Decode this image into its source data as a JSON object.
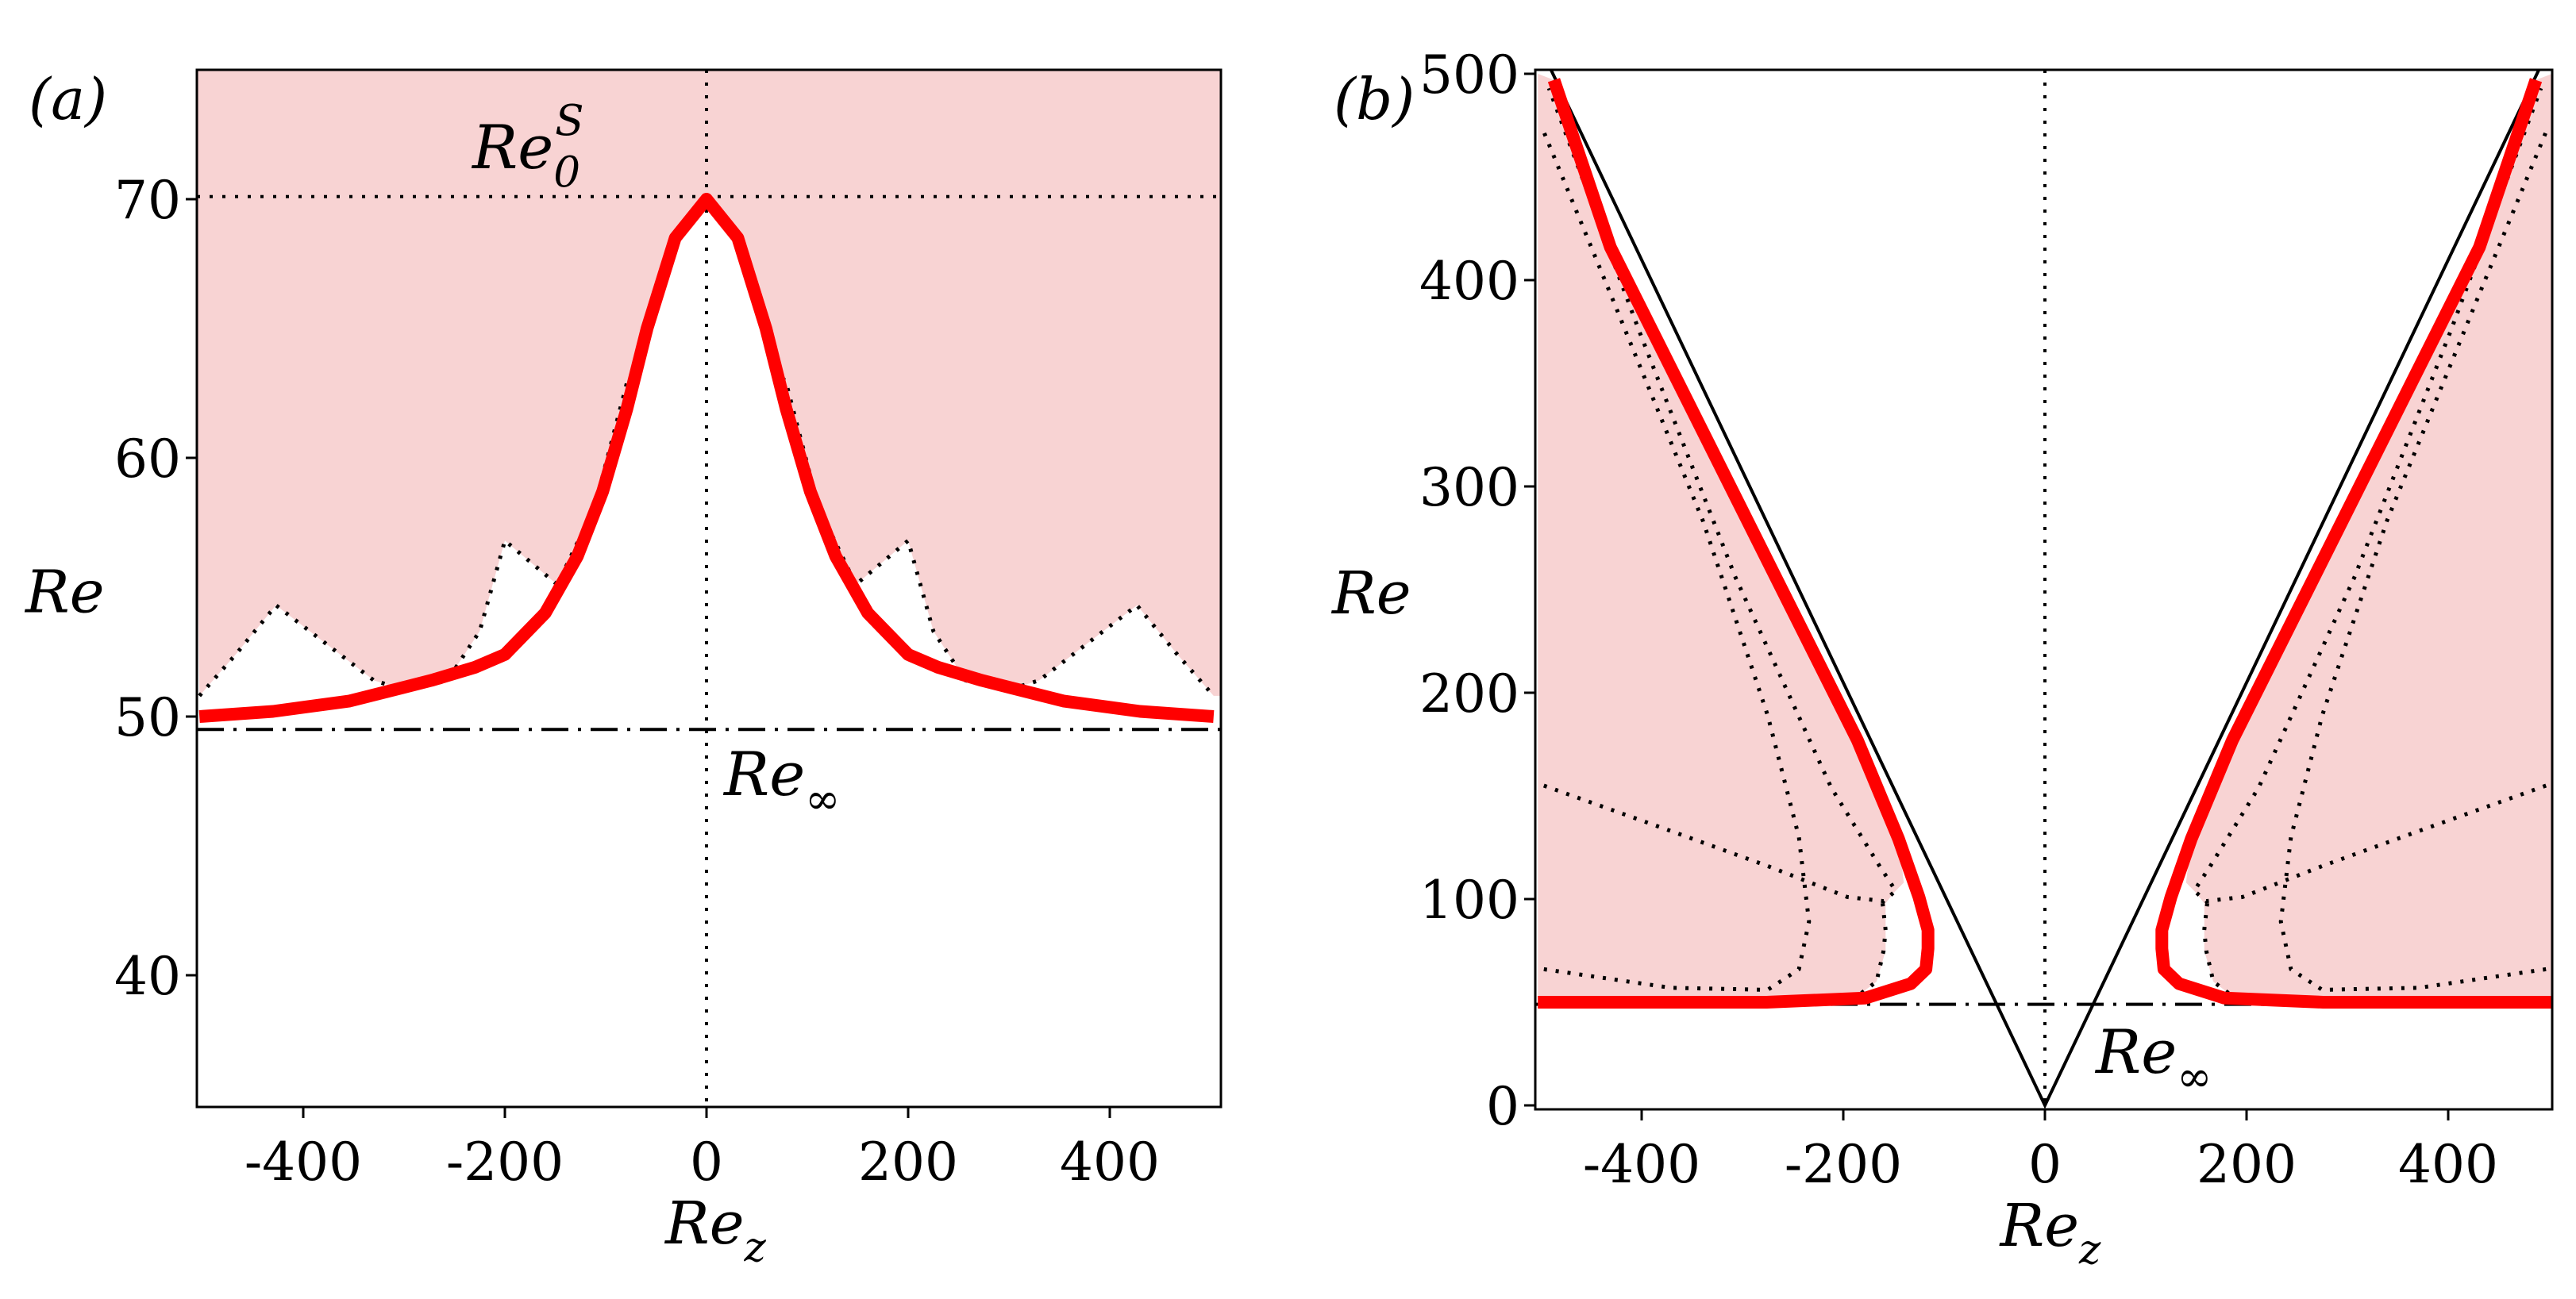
{
  "colors": {
    "shade": "#f8d3d3",
    "curve": "#ff0000",
    "line": "#000000"
  },
  "chart_data": [
    {
      "panel": "(a)",
      "type": "line",
      "xlabel": {
        "base": "Re",
        "sub": "z"
      },
      "ylabel": "Re",
      "xlim": [
        -505,
        505
      ],
      "ylim": [
        35,
        75
      ],
      "xticks": [
        -400,
        -200,
        0,
        200,
        400
      ],
      "xtick_labels": [
        "-400",
        "-200",
        "0",
        "200",
        "400"
      ],
      "yticks": [
        40,
        50,
        60,
        70
      ],
      "ytick_labels": [
        "40",
        "50",
        "60",
        "70"
      ],
      "symmetric_about_zero": true,
      "red_curve_right_half": {
        "x": [
          0,
          31,
          59,
          79,
          103,
          128,
          160,
          200,
          230,
          273,
          354,
          430,
          503
        ],
        "y": [
          70,
          68.5,
          65,
          61.9,
          58.7,
          56.2,
          54,
          52.4,
          51.9,
          51.4,
          50.6,
          50.2,
          50.0
        ]
      },
      "dotted_curve_right_half": {
        "x": [
          0,
          30,
          63,
          79,
          111,
          148,
          200,
          225,
          257,
          297,
          330,
          427,
          467,
          503
        ],
        "y": [
          70,
          68.5,
          63.8,
          62.9,
          58.1,
          55.1,
          56.8,
          53.3,
          51.4,
          51,
          51.4,
          54.3,
          52.4,
          50.8
        ]
      },
      "shaded_region": "above dotted curve",
      "hlines": [
        {
          "y": 70.1,
          "style": "dotted",
          "label": {
            "base": "Re",
            "sub": "0",
            "sup": "S"
          }
        },
        {
          "y": 49.5,
          "style": "dashdot",
          "label": {
            "base": "Re",
            "sub": "∞"
          }
        }
      ],
      "vline": {
        "x": 0,
        "style": "dotted"
      }
    },
    {
      "panel": "(b)",
      "type": "line",
      "xlabel": {
        "base": "Re",
        "sub": "z"
      },
      "ylabel": "Re",
      "xlim": [
        -505,
        505
      ],
      "ylim": [
        -2,
        502
      ],
      "xticks": [
        -400,
        -200,
        0,
        200,
        400
      ],
      "xtick_labels": [
        "-400",
        "-200",
        "0",
        "200",
        "400"
      ],
      "yticks": [
        0,
        100,
        200,
        300,
        400,
        500
      ],
      "ytick_labels": [
        "0",
        "100",
        "200",
        "300",
        "400",
        "500"
      ],
      "symmetric_about_zero": true,
      "red_curve_right_half": {
        "x": [
          503,
          276,
          178,
          133,
          118,
          116,
          116,
          125,
          145,
          186,
          268,
          349,
          431,
          487
        ],
        "y": [
          50,
          50,
          52,
          59,
          66,
          76,
          85,
          101,
          129,
          177,
          257,
          336,
          416,
          497
        ]
      },
      "dotted_curve_1_right_half": {
        "x": [
          497,
          371,
          275,
          196,
          160,
          148,
          164,
          212,
          307,
          403,
          492
        ],
        "y": [
          155,
          133,
          116,
          101,
          99,
          104,
          116,
          154,
          256,
          376,
          493
        ]
      },
      "dotted_curve_2_right_half": {
        "x": [
          497,
          371,
          275,
          244,
          234,
          244,
          275,
          339,
          434,
          498
        ],
        "y": [
          66,
          57,
          56,
          66,
          89,
          130,
          189,
          283,
          397,
          473
        ]
      },
      "dotted_curve_3_right_half": {
        "x": [
          161,
          158,
          160,
          167,
          186,
          230,
          280
        ],
        "y": [
          98,
          85,
          75,
          60,
          53,
          51,
          50.5
        ]
      },
      "shade_boundary_right_half": {
        "x": [
          487,
          431,
          349,
          268,
          186,
          145,
          140,
          150,
          158,
          158,
          167,
          186,
          280,
          503,
          503
        ],
        "y": [
          497,
          416,
          336,
          257,
          177,
          129,
          108,
          103,
          98,
          75,
          60,
          53,
          50.5,
          50,
          500
        ]
      },
      "v_lines": {
        "x": [
          -490,
          0,
          490
        ],
        "y": [
          502,
          0,
          502
        ]
      },
      "hlines": [
        {
          "y": 49,
          "style": "dashdot",
          "label": {
            "base": "Re",
            "sub": "∞"
          }
        }
      ],
      "vline": {
        "x": 0,
        "style": "dotted"
      }
    }
  ]
}
